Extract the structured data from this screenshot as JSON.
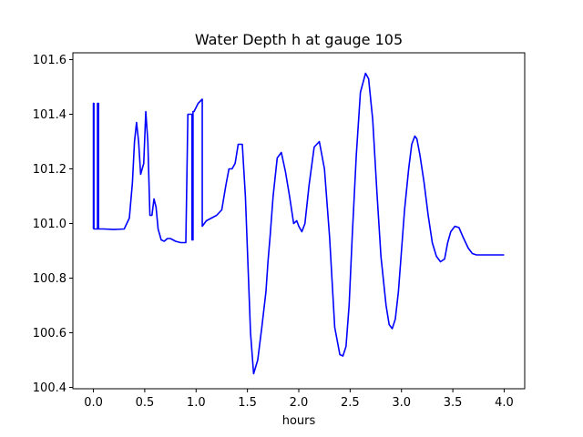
{
  "chart_data": {
    "type": "line",
    "title": "Water Depth h at gauge 105",
    "xlabel": "hours",
    "ylabel": "",
    "xlim": [
      -0.2,
      4.2
    ],
    "ylim": [
      100.395,
      101.625
    ],
    "xticks": [
      0.0,
      0.5,
      1.0,
      1.5,
      2.0,
      2.5,
      3.0,
      3.5,
      4.0
    ],
    "xtick_labels": [
      "0.0",
      "0.5",
      "1.0",
      "1.5",
      "2.0",
      "2.5",
      "3.0",
      "3.5",
      "4.0"
    ],
    "yticks": [
      100.4,
      100.6,
      100.8,
      101.0,
      101.2,
      101.4,
      101.6
    ],
    "ytick_labels": [
      "100.4",
      "100.6",
      "100.8",
      "101.0",
      "101.2",
      "101.4",
      "101.6"
    ],
    "grid": false,
    "series": [
      {
        "color": "#0000ff",
        "x": [
          0.0,
          0.0,
          0.005,
          0.005,
          0.04,
          0.04,
          0.05,
          0.05,
          0.1,
          0.2,
          0.3,
          0.35,
          0.38,
          0.4,
          0.42,
          0.44,
          0.46,
          0.49,
          0.51,
          0.53,
          0.55,
          0.57,
          0.59,
          0.61,
          0.63,
          0.66,
          0.69,
          0.72,
          0.75,
          0.8,
          0.85,
          0.9,
          0.92,
          0.92,
          0.93,
          0.93,
          0.96,
          0.96,
          0.97,
          0.97,
          0.98,
          0.98,
          1.02,
          1.06,
          1.06,
          1.1,
          1.15,
          1.2,
          1.25,
          1.29,
          1.32,
          1.35,
          1.38,
          1.41,
          1.45,
          1.48,
          1.5,
          1.53,
          1.56,
          1.6,
          1.64,
          1.68,
          1.7,
          1.72,
          1.75,
          1.79,
          1.83,
          1.87,
          1.91,
          1.95,
          1.98,
          2.0,
          2.03,
          2.06,
          2.1,
          2.15,
          2.2,
          2.25,
          2.3,
          2.35,
          2.4,
          2.43,
          2.46,
          2.49,
          2.52,
          2.56,
          2.6,
          2.65,
          2.68,
          2.72,
          2.76,
          2.8,
          2.85,
          2.88,
          2.91,
          2.94,
          2.97,
          3.0,
          3.03,
          3.07,
          3.1,
          3.13,
          3.15,
          3.18,
          3.22,
          3.26,
          3.3,
          3.34,
          3.38,
          3.42,
          3.45,
          3.48,
          3.52,
          3.56,
          3.6,
          3.65,
          3.69,
          3.73,
          3.77,
          3.81,
          3.85,
          3.88,
          3.91,
          3.94,
          3.97,
          4.0
        ],
        "y": [
          100.98,
          101.44,
          101.44,
          100.98,
          100.98,
          101.44,
          101.44,
          100.98,
          100.98,
          100.978,
          100.98,
          101.02,
          101.15,
          101.3,
          101.37,
          101.3,
          101.18,
          101.22,
          101.41,
          101.3,
          101.03,
          101.03,
          101.09,
          101.06,
          100.98,
          100.94,
          100.935,
          100.945,
          100.945,
          100.935,
          100.93,
          100.93,
          101.4,
          101.4,
          101.4,
          101.4,
          101.4,
          100.94,
          100.94,
          101.41,
          101.41,
          101.41,
          101.44,
          101.455,
          100.99,
          101.01,
          101.02,
          101.03,
          101.05,
          101.14,
          101.2,
          101.2,
          101.22,
          101.29,
          101.29,
          101.1,
          100.9,
          100.6,
          100.45,
          100.5,
          100.62,
          100.75,
          100.86,
          100.95,
          101.1,
          101.24,
          101.26,
          101.19,
          101.1,
          101.0,
          101.01,
          100.99,
          100.97,
          101.0,
          101.14,
          101.28,
          101.3,
          101.2,
          100.95,
          100.62,
          100.52,
          100.515,
          100.55,
          100.7,
          100.95,
          101.25,
          101.48,
          101.55,
          101.53,
          101.38,
          101.12,
          100.88,
          100.7,
          100.63,
          100.615,
          100.65,
          100.75,
          100.9,
          101.05,
          101.2,
          101.29,
          101.32,
          101.31,
          101.25,
          101.15,
          101.03,
          100.93,
          100.88,
          100.86,
          100.87,
          100.93,
          100.97,
          100.99,
          100.985,
          100.95,
          100.91,
          100.89,
          100.885,
          100.885,
          100.885,
          100.885,
          100.885,
          100.885,
          100.885,
          100.885,
          100.885
        ]
      }
    ]
  }
}
